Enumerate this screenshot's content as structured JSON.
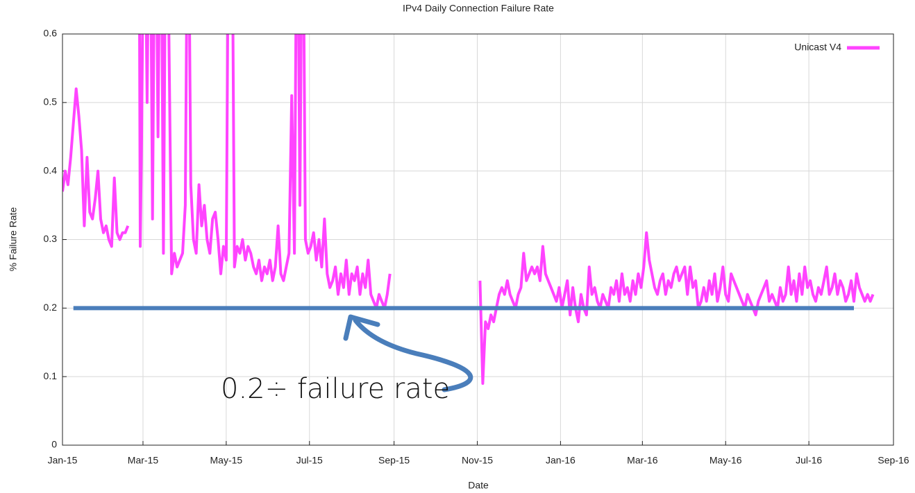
{
  "chart_data": {
    "type": "line",
    "title": "IPv4 Daily Connection Failure Rate",
    "x_label": "Date",
    "y_label": "% Failure Rate",
    "xlim": [
      0,
      609
    ],
    "ylim": [
      0,
      0.6
    ],
    "xticks": [
      {
        "value": 0,
        "label": "Jan-15"
      },
      {
        "value": 59,
        "label": "Mar-15"
      },
      {
        "value": 120,
        "label": "May-15"
      },
      {
        "value": 181,
        "label": "Jul-15"
      },
      {
        "value": 243,
        "label": "Sep-15"
      },
      {
        "value": 304,
        "label": "Nov-15"
      },
      {
        "value": 365,
        "label": "Jan-16"
      },
      {
        "value": 425,
        "label": "Mar-16"
      },
      {
        "value": 486,
        "label": "May-16"
      },
      {
        "value": 547,
        "label": "Jul-16"
      },
      {
        "value": 609,
        "label": "Sep-16"
      }
    ],
    "yticks": [
      0,
      0.1,
      0.2,
      0.3,
      0.4,
      0.5,
      0.6
    ],
    "grid": true,
    "legend": "top-right",
    "x": [
      0,
      2,
      4,
      6,
      8,
      10,
      12,
      14,
      16,
      18,
      20,
      22,
      24,
      26,
      28,
      30,
      32,
      34,
      36,
      38,
      40,
      42,
      44,
      46,
      48,
      52,
      56,
      57,
      58,
      60,
      62,
      64,
      66,
      68,
      70,
      72,
      74,
      76,
      78,
      80,
      82,
      84,
      86,
      88,
      90,
      92,
      94,
      96,
      98,
      100,
      102,
      104,
      106,
      108,
      110,
      112,
      114,
      116,
      118,
      120,
      122,
      124,
      126,
      128,
      130,
      132,
      134,
      136,
      138,
      140,
      142,
      144,
      146,
      148,
      150,
      152,
      154,
      156,
      158,
      160,
      162,
      164,
      166,
      168,
      170,
      172,
      174,
      176,
      178,
      180,
      182,
      184,
      186,
      188,
      190,
      192,
      194,
      196,
      198,
      200,
      202,
      204,
      206,
      208,
      210,
      212,
      214,
      216,
      218,
      220,
      222,
      224,
      226,
      228,
      230,
      232,
      234,
      236,
      238,
      240,
      270,
      306,
      308,
      310,
      312,
      314,
      316,
      318,
      320,
      322,
      324,
      326,
      328,
      330,
      332,
      334,
      336,
      338,
      340,
      342,
      344,
      346,
      348,
      350,
      352,
      354,
      356,
      358,
      360,
      362,
      364,
      366,
      368,
      370,
      372,
      374,
      376,
      378,
      380,
      382,
      384,
      386,
      388,
      390,
      392,
      394,
      396,
      398,
      400,
      402,
      404,
      406,
      408,
      410,
      412,
      414,
      416,
      418,
      420,
      422,
      424,
      426,
      428,
      430,
      432,
      434,
      436,
      438,
      440,
      442,
      444,
      446,
      448,
      450,
      452,
      454,
      456,
      458,
      460,
      462,
      464,
      466,
      468,
      470,
      472,
      474,
      476,
      478,
      480,
      482,
      484,
      486,
      488,
      490,
      492,
      494,
      496,
      498,
      500,
      502,
      504,
      506,
      508,
      510,
      512,
      514,
      516,
      518,
      520,
      522,
      524,
      526,
      528,
      530,
      532,
      534,
      536,
      538,
      540,
      542,
      544,
      546,
      548,
      550,
      552,
      554,
      556,
      558,
      560,
      562,
      564,
      566,
      568,
      570,
      572,
      574,
      576,
      578,
      580,
      582,
      584,
      586,
      588,
      590,
      592,
      594
    ],
    "series": [
      {
        "name": "Unicast V4",
        "color": "#ff44ff",
        "values": [
          0.37,
          0.4,
          0.38,
          0.42,
          0.47,
          0.52,
          0.48,
          0.43,
          0.32,
          0.42,
          0.34,
          0.33,
          0.36,
          0.4,
          0.33,
          0.31,
          0.32,
          0.3,
          0.29,
          0.39,
          0.31,
          0.3,
          0.31,
          0.31,
          0.32,
          null,
          0.9,
          0.29,
          0.45,
          0.9,
          0.5,
          0.9,
          0.33,
          0.9,
          0.45,
          0.9,
          0.28,
          0.9,
          0.6,
          0.25,
          0.28,
          0.26,
          0.27,
          0.28,
          0.35,
          0.9,
          0.38,
          0.3,
          0.28,
          0.38,
          0.32,
          0.35,
          0.3,
          0.28,
          0.33,
          0.34,
          0.3,
          0.25,
          0.29,
          0.27,
          0.9,
          0.9,
          0.26,
          0.29,
          0.28,
          0.3,
          0.27,
          0.29,
          0.28,
          0.26,
          0.25,
          0.27,
          0.24,
          0.26,
          0.25,
          0.27,
          0.24,
          0.26,
          0.32,
          0.25,
          0.24,
          0.26,
          0.28,
          0.51,
          0.28,
          0.9,
          0.35,
          0.9,
          0.3,
          0.28,
          0.29,
          0.31,
          0.27,
          0.3,
          0.26,
          0.33,
          0.25,
          0.23,
          0.24,
          0.26,
          0.22,
          0.25,
          0.23,
          0.27,
          0.22,
          0.25,
          0.24,
          0.26,
          0.22,
          0.25,
          0.23,
          0.27,
          0.22,
          0.21,
          0.2,
          0.22,
          0.21,
          0.2,
          0.22,
          0.25,
          null,
          0.24,
          0.09,
          0.18,
          0.17,
          0.19,
          0.18,
          0.2,
          0.22,
          0.23,
          0.22,
          0.24,
          0.22,
          0.21,
          0.2,
          0.22,
          0.23,
          0.28,
          0.24,
          0.25,
          0.26,
          0.25,
          0.26,
          0.24,
          0.29,
          0.25,
          0.24,
          0.23,
          0.22,
          0.21,
          0.23,
          0.2,
          0.22,
          0.24,
          0.19,
          0.23,
          0.2,
          0.18,
          0.22,
          0.2,
          0.19,
          0.26,
          0.22,
          0.23,
          0.21,
          0.2,
          0.22,
          0.21,
          0.2,
          0.23,
          0.22,
          0.24,
          0.21,
          0.25,
          0.22,
          0.23,
          0.21,
          0.24,
          0.22,
          0.25,
          0.23,
          0.26,
          0.31,
          0.27,
          0.25,
          0.23,
          0.22,
          0.24,
          0.25,
          0.22,
          0.24,
          0.23,
          0.25,
          0.26,
          0.24,
          0.25,
          0.26,
          0.22,
          0.26,
          0.23,
          0.24,
          0.2,
          0.21,
          0.23,
          0.21,
          0.24,
          0.22,
          0.25,
          0.21,
          0.23,
          0.26,
          0.22,
          0.21,
          0.25,
          0.24,
          0.23,
          0.22,
          0.21,
          0.2,
          0.22,
          0.21,
          0.2,
          0.19,
          0.21,
          0.22,
          0.23,
          0.24,
          0.21,
          0.22,
          0.21,
          0.2,
          0.23,
          0.21,
          0.22,
          0.26,
          0.22,
          0.24,
          0.21,
          0.25,
          0.22,
          0.26,
          0.23,
          0.24,
          0.22,
          0.21,
          0.23,
          0.22,
          0.24,
          0.26,
          0.22,
          0.23,
          0.25,
          0.22,
          0.24,
          0.23,
          0.21,
          0.22,
          0.24,
          0.21,
          0.25,
          0.23,
          0.22,
          0.21,
          0.22,
          0.21,
          0.22
        ]
      }
    ],
    "reference_line": {
      "value": 0.2,
      "from": 8,
      "to": 580,
      "color": "#4a7ebb"
    },
    "annotation": "0.2÷ failure rate"
  }
}
